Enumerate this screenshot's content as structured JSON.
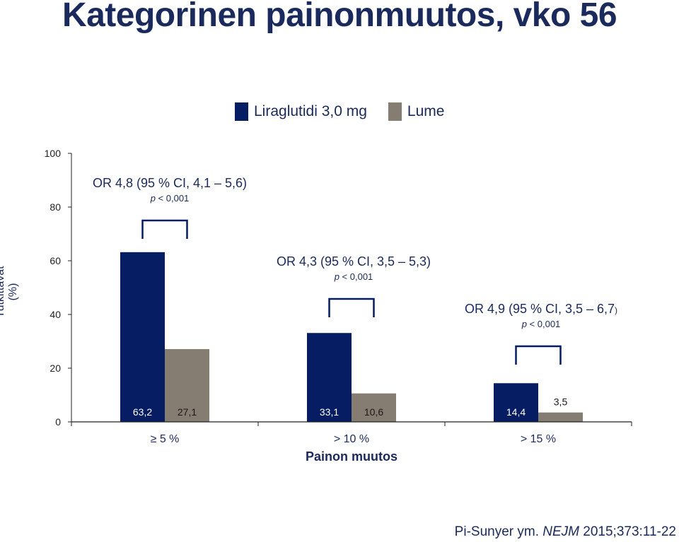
{
  "title": "Kategorinen painonmuutos, vko 56",
  "citation": {
    "author": "Pi-Sunyer ym. ",
    "journal": "NEJM",
    "rest": " 2015;373:11-22"
  },
  "colors": {
    "liraglutidi": "#061c63",
    "lume": "#857c72",
    "text": "#1b2a5c"
  },
  "chart_data": {
    "type": "bar",
    "title": "Kategorinen painonmuutos, vko 56",
    "xlabel": "Painon muutos",
    "ylabel": "Tutkittavat (%)",
    "ylim": [
      0,
      100
    ],
    "yticks": [
      "0",
      "20",
      "40",
      "60",
      "80",
      "100"
    ],
    "legend_position": "top",
    "categories": [
      "≥ 5 %",
      "> 10 %",
      "> 15 %"
    ],
    "series": [
      {
        "name": "Liraglutidi 3,0 mg",
        "values": [
          63.2,
          33.1,
          14.4
        ],
        "labels": [
          "63,2",
          "33,1",
          "14,4"
        ]
      },
      {
        "name": "Lume",
        "values": [
          27.1,
          10.6,
          3.5
        ],
        "labels": [
          "27,1",
          "10,6",
          "3,5"
        ]
      }
    ],
    "annotations": [
      {
        "or_text": "OR 4,8 (95 % CI, 4,1 – 5,6)",
        "p_label": "p",
        "p_text": " < 0,001"
      },
      {
        "or_text": "OR 4,3 (95 % CI, 3,5 – 5,3)",
        "p_label": "p",
        "p_text": " < 0,001"
      },
      {
        "or_text": "OR 4,9 (95 % CI, 3,5 – 6,7",
        "or_suffix": ")",
        "p_label": "p",
        "p_text": " < 0,001"
      }
    ]
  }
}
